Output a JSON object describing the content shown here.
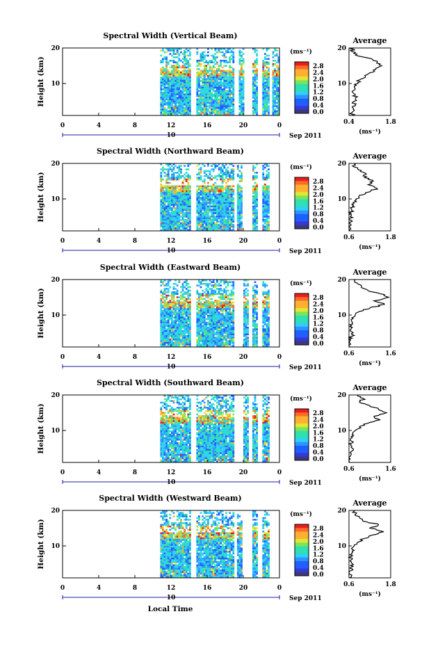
{
  "figure": {
    "x_axis_title": "Local Time",
    "date_label": "Sep 2011",
    "day_label": "10",
    "colorbar_unit": "(ms⁻¹)",
    "colorbar_ticks": [
      "2.8",
      "2.4",
      "2.0",
      "1.6",
      "1.2",
      "0.8",
      "0.4",
      "0.0"
    ],
    "colors": {
      "scale": [
        "#3a3a78",
        "#3838d8",
        "#1f5fff",
        "#2c96ff",
        "#2fd0ff",
        "#2fe0b0",
        "#7de35a",
        "#e0e634",
        "#ffb030",
        "#ff6a2a",
        "#e8201a"
      ],
      "frame": "#000000",
      "axis_blue": "#1a1aa0"
    }
  },
  "chart_data": [
    {
      "type": "heatmap",
      "title": "Spectral Width (Vertical Beam)",
      "xlabel": "Local Time",
      "ylabel": "Height (km)",
      "x_ticks": [
        "0",
        "4",
        "8",
        "12",
        "16",
        "20",
        "0"
      ],
      "y_ticks": [
        "20",
        "10"
      ],
      "xlim": [
        0,
        24
      ],
      "ylim": [
        1,
        20
      ],
      "data_blocks_hours": [
        [
          10.8,
          14.2
        ],
        [
          14.8,
          19.0
        ],
        [
          19.5,
          20.0
        ],
        [
          21.0,
          21.6
        ],
        [
          22.1,
          22.9
        ],
        [
          23.2,
          24.0
        ]
      ],
      "colorbar": {
        "unit": "(ms⁻¹)",
        "range": [
          0.0,
          2.8
        ]
      },
      "average_profile": {
        "title": "Average",
        "xlabel": "(ms⁻¹)",
        "x_ticks": [
          "0.4",
          "1.8"
        ],
        "y_ticks": [
          "20",
          "10"
        ],
        "xlim": [
          0.4,
          1.8
        ],
        "height_km": [
          20,
          19,
          18,
          17,
          16,
          15,
          14,
          13,
          12,
          11,
          10,
          9,
          8,
          7,
          6,
          5,
          4,
          3,
          2,
          1
        ],
        "width": [
          0.55,
          0.5,
          0.62,
          1.15,
          1.35,
          1.5,
          1.3,
          1.1,
          0.95,
          0.75,
          0.7,
          0.58,
          0.55,
          0.6,
          0.62,
          0.58,
          0.6,
          0.55,
          0.52,
          0.5
        ]
      }
    },
    {
      "type": "heatmap",
      "title": "Spectral Width (Northward Beam)",
      "xlabel": "Local Time",
      "ylabel": "Height (km)",
      "x_ticks": [
        "0",
        "4",
        "8",
        "12",
        "16",
        "20",
        "0"
      ],
      "y_ticks": [
        "20",
        "10"
      ],
      "xlim": [
        0,
        24
      ],
      "ylim": [
        1,
        20
      ],
      "data_blocks_hours": [
        [
          10.8,
          14.2
        ],
        [
          14.8,
          19.0
        ],
        [
          19.3,
          19.8
        ],
        [
          21.0,
          21.6
        ],
        [
          22.1,
          22.9
        ]
      ],
      "colorbar": {
        "unit": "(ms⁻¹)",
        "range": [
          0.0,
          2.8
        ]
      },
      "average_profile": {
        "title": "Average",
        "xlabel": "(ms⁻¹)",
        "x_ticks": [
          "0.6",
          "1.8"
        ],
        "y_ticks": [
          "20",
          "10"
        ],
        "xlim": [
          0.6,
          1.8
        ],
        "height_km": [
          20,
          19,
          18,
          17,
          16,
          15,
          14,
          13,
          12,
          11,
          10,
          9,
          8,
          7,
          6,
          5,
          4,
          3,
          2,
          1
        ],
        "width": [
          0.8,
          0.75,
          0.95,
          1.1,
          1.05,
          1.3,
          1.15,
          1.4,
          1.2,
          0.9,
          0.8,
          0.72,
          0.7,
          0.68,
          0.66,
          0.64,
          0.65,
          0.63,
          0.62,
          0.61
        ]
      }
    },
    {
      "type": "heatmap",
      "title": "Spectral Width (Eastward Beam)",
      "xlabel": "Local Time",
      "ylabel": "Height (km)",
      "x_ticks": [
        "0",
        "4",
        "8",
        "12",
        "16",
        "20",
        "0"
      ],
      "y_ticks": [
        "20",
        "10"
      ],
      "xlim": [
        0,
        24
      ],
      "ylim": [
        1,
        20
      ],
      "data_blocks_hours": [
        [
          10.8,
          14.2
        ],
        [
          14.8,
          19.0
        ],
        [
          20.0,
          20.5
        ],
        [
          21.0,
          21.6
        ],
        [
          22.1,
          22.9
        ]
      ],
      "colorbar": {
        "unit": "(ms⁻¹)",
        "range": [
          0.0,
          2.8
        ]
      },
      "average_profile": {
        "title": "Average",
        "xlabel": "(ms⁻¹)",
        "x_ticks": [
          "0.6",
          "1.6"
        ],
        "y_ticks": [
          "20",
          "10"
        ],
        "xlim": [
          0.6,
          1.6
        ],
        "height_km": [
          20,
          19,
          18,
          17,
          16,
          15,
          14,
          13,
          12,
          11,
          10,
          9,
          8,
          7,
          6,
          5,
          4,
          3,
          2,
          1
        ],
        "width": [
          0.75,
          0.8,
          0.9,
          1.05,
          1.35,
          1.55,
          1.2,
          1.45,
          1.1,
          0.85,
          0.75,
          0.7,
          0.68,
          0.66,
          0.65,
          0.7,
          0.66,
          0.64,
          0.63,
          0.62
        ]
      }
    },
    {
      "type": "heatmap",
      "title": "Spectral Width (Southward Beam)",
      "xlabel": "Local Time",
      "ylabel": "Height (km)",
      "x_ticks": [
        "0",
        "4",
        "8",
        "12",
        "16",
        "20",
        "0"
      ],
      "y_ticks": [
        "20",
        "10"
      ],
      "xlim": [
        0,
        24
      ],
      "ylim": [
        1,
        20
      ],
      "data_blocks_hours": [
        [
          10.8,
          14.2
        ],
        [
          14.8,
          19.0
        ],
        [
          20.0,
          20.5
        ],
        [
          21.0,
          21.6
        ],
        [
          22.1,
          22.9
        ]
      ],
      "colorbar": {
        "unit": "(ms⁻¹)",
        "range": [
          0.0,
          2.8
        ]
      },
      "average_profile": {
        "title": "Average",
        "xlabel": "(ms⁻¹)",
        "x_ticks": [
          "0.6",
          "1.6"
        ],
        "y_ticks": [
          "20",
          "10"
        ],
        "xlim": [
          0.6,
          1.6
        ],
        "height_km": [
          20,
          19,
          18,
          17,
          16,
          15,
          14,
          13,
          12,
          11,
          10,
          9,
          8,
          7,
          6,
          5,
          4,
          3,
          2,
          1
        ],
        "width": [
          0.8,
          0.95,
          0.85,
          1.1,
          1.3,
          1.5,
          1.2,
          1.35,
          1.05,
          0.85,
          0.75,
          0.7,
          0.68,
          0.66,
          0.65,
          0.68,
          0.65,
          0.64,
          0.63,
          0.62
        ]
      }
    },
    {
      "type": "heatmap",
      "title": "Spectral Width (Westward Beam)",
      "xlabel": "Local Time",
      "ylabel": "Height (km)",
      "x_ticks": [
        "0",
        "4",
        "8",
        "12",
        "16",
        "20",
        "0"
      ],
      "y_ticks": [
        "20",
        "10"
      ],
      "xlim": [
        0,
        24
      ],
      "ylim": [
        1,
        20
      ],
      "data_blocks_hours": [
        [
          10.8,
          14.2
        ],
        [
          14.8,
          19.0
        ],
        [
          19.3,
          19.8
        ],
        [
          21.0,
          21.6
        ],
        [
          22.1,
          22.9
        ]
      ],
      "colorbar": {
        "unit": "(ms⁻¹)",
        "range": [
          0.0,
          2.8
        ]
      },
      "average_profile": {
        "title": "Average",
        "xlabel": "(ms⁻¹)",
        "x_ticks": [
          "0.6",
          "1.8"
        ],
        "y_ticks": [
          "20",
          "10"
        ],
        "xlim": [
          0.6,
          1.8
        ],
        "height_km": [
          20,
          19,
          18,
          17,
          16,
          15,
          14,
          13,
          12,
          11,
          10,
          9,
          8,
          7,
          6,
          5,
          4,
          3,
          2,
          1
        ],
        "width": [
          0.75,
          0.8,
          0.9,
          1.0,
          1.45,
          1.2,
          1.6,
          1.25,
          1.0,
          0.85,
          0.75,
          0.7,
          0.68,
          0.66,
          0.65,
          0.7,
          0.66,
          0.64,
          0.63,
          0.62
        ]
      }
    }
  ]
}
